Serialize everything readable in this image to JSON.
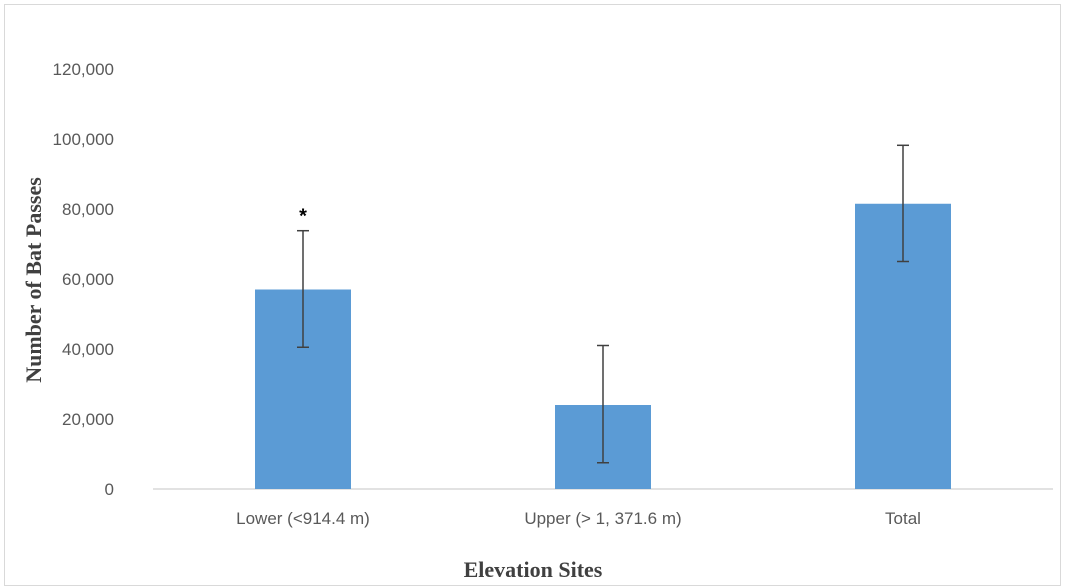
{
  "chart_data": {
    "type": "bar",
    "title": "",
    "xlabel": "Elevation Sites",
    "ylabel": "Number of Bat Passes",
    "categories": [
      "Lower (<914.4 m)",
      "Upper (> 1, 371.6 m)",
      "Total"
    ],
    "values": [
      57000,
      24000,
      81500
    ],
    "error_low": [
      40500,
      7500,
      65000
    ],
    "error_high": [
      73800,
      41000,
      98200
    ],
    "ylim": [
      0,
      120000
    ],
    "yticks": [
      0,
      20000,
      40000,
      60000,
      80000,
      100000,
      120000
    ],
    "ytick_labels": [
      "0",
      "20,000",
      "40,000",
      "60,000",
      "80,000",
      "100,000",
      "120,000"
    ],
    "grid": false,
    "legend": "none",
    "annotations": [
      {
        "category_index": 0,
        "text": "*"
      }
    ],
    "colors": {
      "bar": "#5b9bd5",
      "error_bar": "#404040",
      "axis": "#d9d9d9"
    }
  }
}
